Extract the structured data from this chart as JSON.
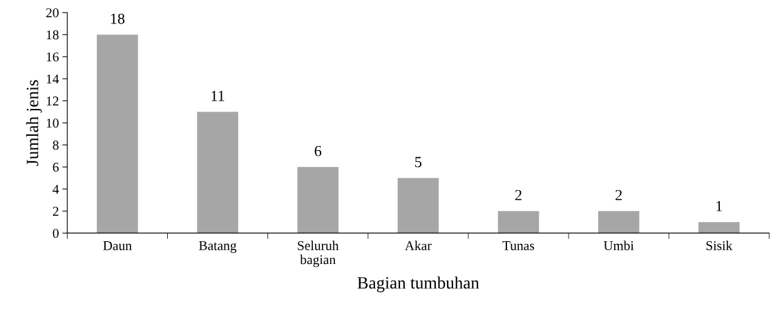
{
  "chart_data": {
    "type": "bar",
    "categories": [
      "Daun",
      "Batang",
      "Seluruh\nbagian",
      "Akar",
      "Tunas",
      "Umbi",
      "Sisik"
    ],
    "values": [
      18,
      11,
      6,
      5,
      2,
      2,
      1
    ],
    "color": "#a6a6a6",
    "xlabel": "Bagian tumbuhan",
    "ylabel": "Jumlah jenis",
    "ylim": [
      0,
      20
    ],
    "yticks": [
      0,
      2,
      4,
      6,
      8,
      10,
      12,
      14,
      16,
      18,
      20
    ],
    "data_labels": true,
    "grid": false,
    "legend": false
  }
}
